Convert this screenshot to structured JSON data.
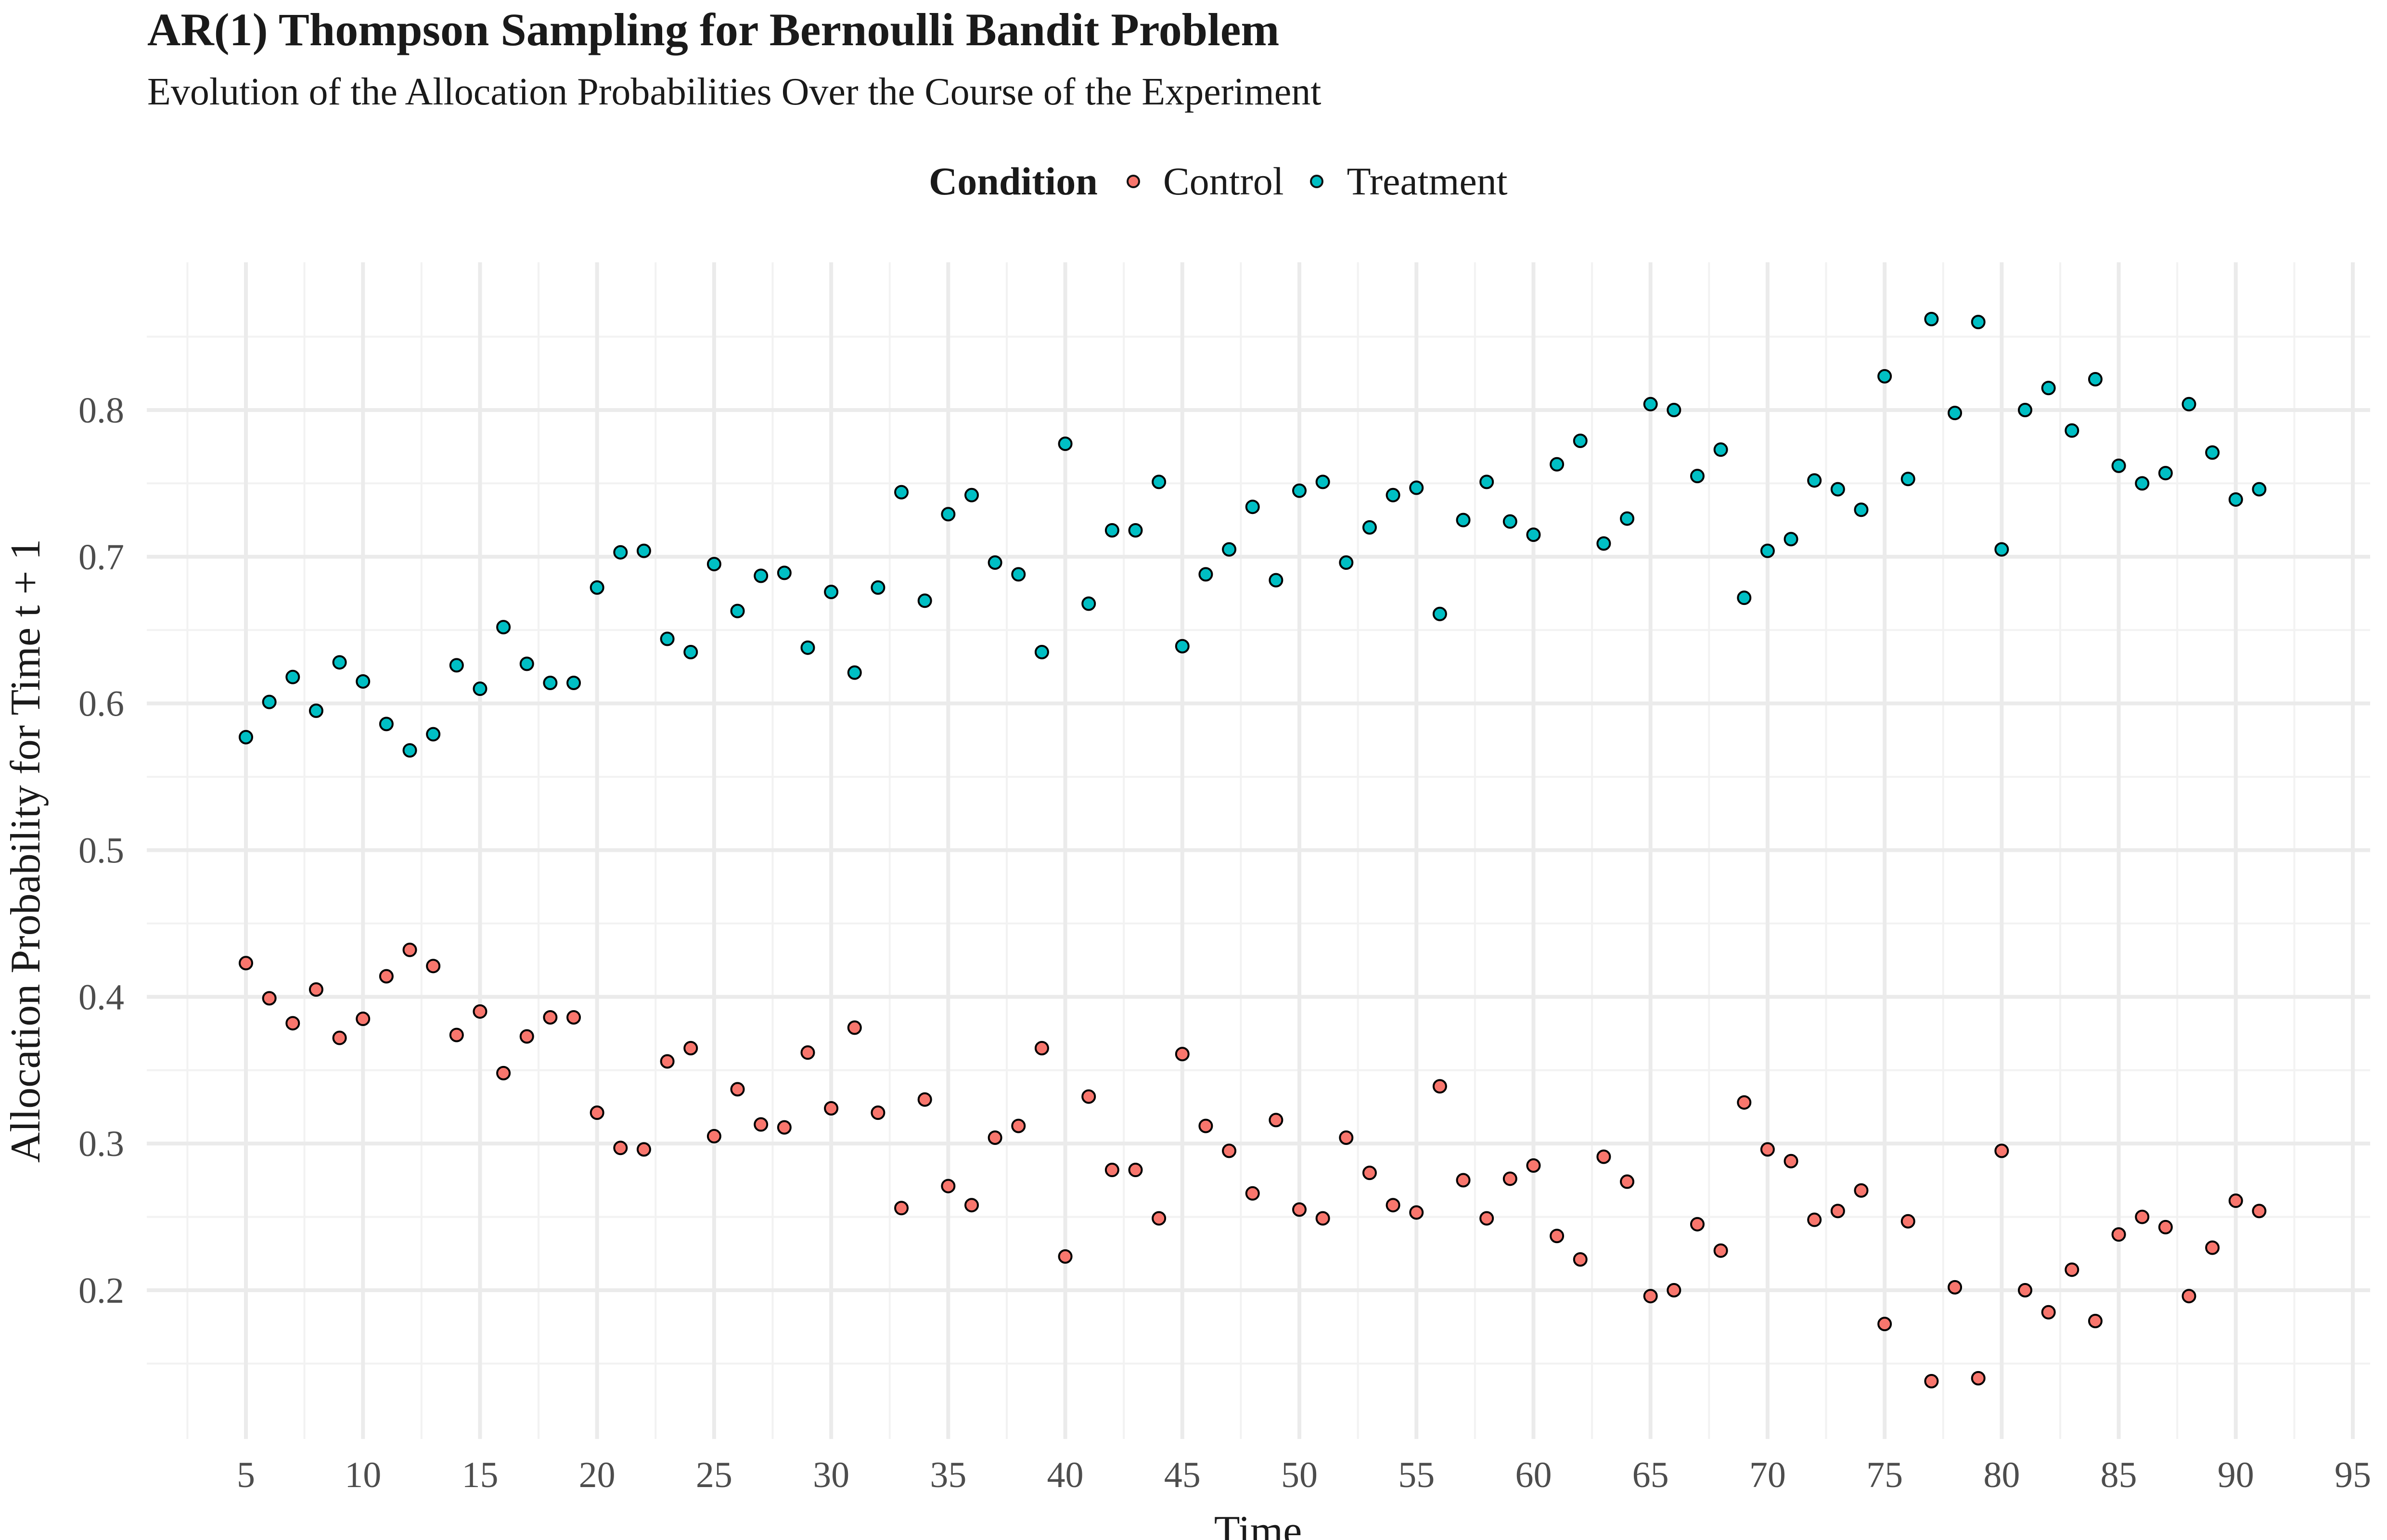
{
  "title": "AR(1) Thompson Sampling for Bernoulli Bandit Problem",
  "subtitle": "Evolution of the Allocation Probabilities Over the Course of the Experiment",
  "legend": {
    "title": "Condition",
    "items": [
      {
        "label": "Control",
        "color": "#F8766D"
      },
      {
        "label": "Treatment",
        "color": "#00BFC4"
      }
    ]
  },
  "chart_data": {
    "type": "scatter",
    "title": "AR(1) Thompson Sampling for Bernoulli Bandit Problem",
    "subtitle": "Evolution of the Allocation Probabilities Over the Course of the Experiment",
    "xlabel": "Time",
    "ylabel": "Allocation Probability for Time t + 1",
    "xlim": [
      2.5,
      95
    ],
    "ylim": [
      0.1,
      0.88
    ],
    "xticks": [
      5,
      10,
      15,
      20,
      25,
      30,
      35,
      40,
      45,
      50,
      55,
      60,
      65,
      70,
      75,
      80,
      85,
      90,
      95
    ],
    "yticks": [
      0.2,
      0.3,
      0.4,
      0.5,
      0.6,
      0.7,
      0.8
    ],
    "xtick_labels": [
      "5",
      "10",
      "15",
      "20",
      "25",
      "30",
      "35",
      "40",
      "45",
      "50",
      "55",
      "60",
      "65",
      "70",
      "75",
      "80",
      "85",
      "90",
      "95"
    ],
    "ytick_labels": [
      "0.2",
      "0.3",
      "0.4",
      "0.5",
      "0.6",
      "0.7",
      "0.8"
    ],
    "grid": true,
    "legend_position": "top",
    "x": [
      5,
      6,
      7,
      8,
      9,
      10,
      11,
      12,
      13,
      14,
      15,
      16,
      17,
      18,
      19,
      20,
      21,
      22,
      23,
      24,
      25,
      26,
      27,
      28,
      29,
      30,
      31,
      32,
      33,
      34,
      35,
      36,
      37,
      38,
      39,
      40,
      41,
      42,
      43,
      44,
      45,
      46,
      47,
      48,
      49,
      50,
      51,
      52,
      53,
      54,
      55,
      56,
      57,
      58,
      59,
      60,
      61,
      62,
      63,
      64,
      65,
      66,
      67,
      68,
      69,
      70,
      71,
      72,
      73,
      74,
      75,
      76,
      77,
      78,
      79,
      80,
      81,
      82,
      83,
      84,
      85,
      86,
      87,
      88,
      89,
      90,
      91
    ],
    "series": [
      {
        "name": "Control",
        "color": "#F8766D",
        "values": [
          0.423,
          0.399,
          0.382,
          0.405,
          0.372,
          0.385,
          0.414,
          0.432,
          0.421,
          0.374,
          0.39,
          0.348,
          0.373,
          0.386,
          0.386,
          0.321,
          0.297,
          0.296,
          0.356,
          0.365,
          0.305,
          0.337,
          0.313,
          0.311,
          0.362,
          0.324,
          0.379,
          0.321,
          0.256,
          0.33,
          0.271,
          0.258,
          0.304,
          0.312,
          0.365,
          0.223,
          0.332,
          0.282,
          0.282,
          0.249,
          0.361,
          0.312,
          0.295,
          0.266,
          0.316,
          0.255,
          0.249,
          0.304,
          0.28,
          0.258,
          0.253,
          0.339,
          0.275,
          0.249,
          0.276,
          0.285,
          0.237,
          0.221,
          0.291,
          0.274,
          0.196,
          0.2,
          0.245,
          0.227,
          0.328,
          0.296,
          0.288,
          0.248,
          0.254,
          0.268,
          0.177,
          0.247,
          0.138,
          0.202,
          0.14,
          0.295,
          0.2,
          0.185,
          0.214,
          0.179,
          0.238,
          0.25,
          0.243,
          0.196,
          0.229,
          0.261,
          0.254
        ]
      },
      {
        "name": "Treatment",
        "color": "#00BFC4",
        "values": [
          0.577,
          0.601,
          0.618,
          0.595,
          0.628,
          0.615,
          0.586,
          0.568,
          0.579,
          0.626,
          0.61,
          0.652,
          0.627,
          0.614,
          0.614,
          0.679,
          0.703,
          0.704,
          0.644,
          0.635,
          0.695,
          0.663,
          0.687,
          0.689,
          0.638,
          0.676,
          0.621,
          0.679,
          0.744,
          0.67,
          0.729,
          0.742,
          0.696,
          0.688,
          0.635,
          0.777,
          0.668,
          0.718,
          0.718,
          0.751,
          0.639,
          0.688,
          0.705,
          0.734,
          0.684,
          0.745,
          0.751,
          0.696,
          0.72,
          0.742,
          0.747,
          0.661,
          0.725,
          0.751,
          0.724,
          0.715,
          0.763,
          0.779,
          0.709,
          0.726,
          0.804,
          0.8,
          0.755,
          0.773,
          0.672,
          0.704,
          0.712,
          0.752,
          0.746,
          0.732,
          0.823,
          0.753,
          0.862,
          0.798,
          0.86,
          0.705,
          0.8,
          0.815,
          0.786,
          0.821,
          0.762,
          0.75,
          0.757,
          0.804,
          0.771,
          0.739,
          0.746
        ]
      }
    ]
  }
}
